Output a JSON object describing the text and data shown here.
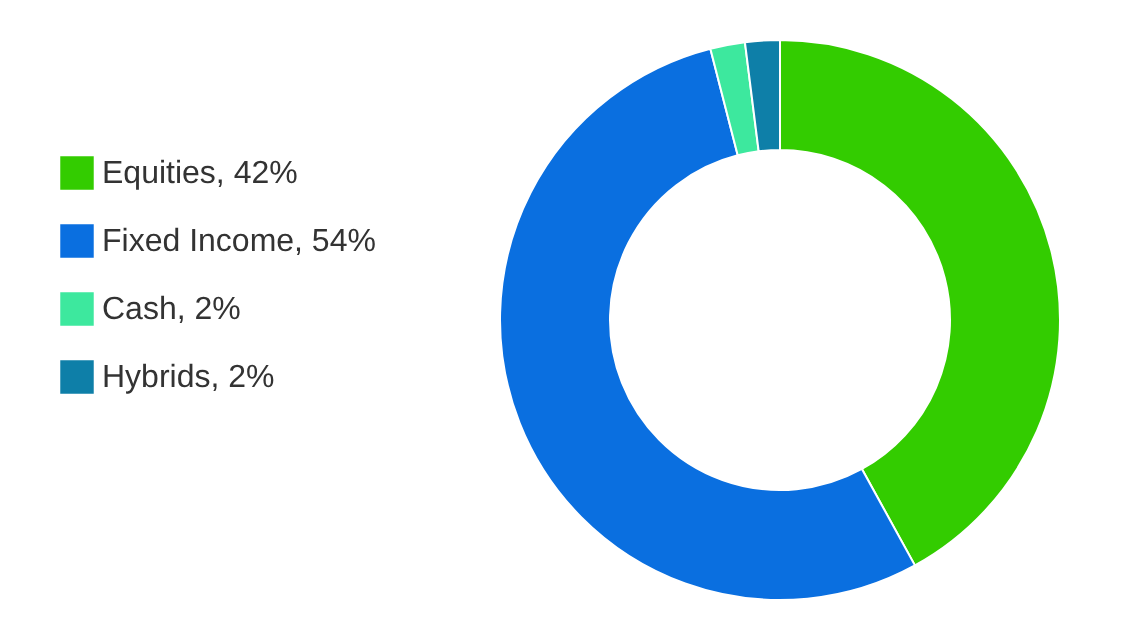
{
  "chart_data": {
    "type": "donut",
    "categories": [
      "Equities, 42%",
      "Fixed Income, 54%",
      "Cash, 2%",
      "Hybrids, 2%"
    ],
    "values": [
      42,
      54,
      2,
      2
    ],
    "colors": [
      "#33cc00",
      "#0a6fe0",
      "#3de89e",
      "#0e7fa8"
    ],
    "legend": "left"
  }
}
